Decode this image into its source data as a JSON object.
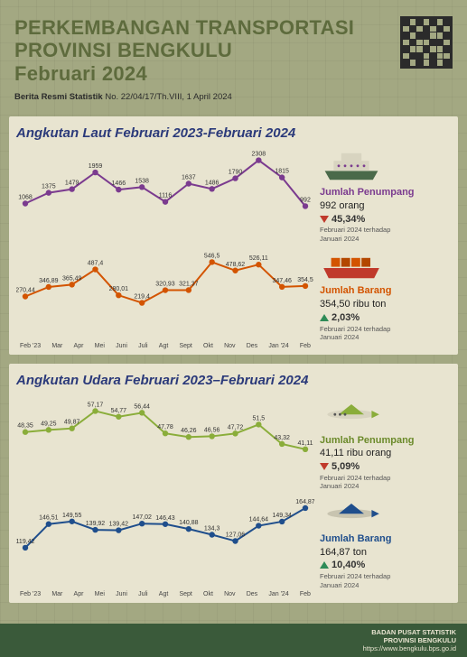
{
  "header": {
    "title_line1": "PERKEMBANGAN TRANSPORTASI",
    "title_line2": "PROVINSI BENGKULU",
    "title_line3": "Februari 2024",
    "subtitle_bold": "Berita Resmi Statistik",
    "subtitle_rest": " No. 22/04/17/Th.VIII, 1 April 2024"
  },
  "months": [
    "Feb '23",
    "Mar",
    "Apr",
    "Mei",
    "Juni",
    "Juli",
    "Agt",
    "Sept",
    "Okt",
    "Nov",
    "Des",
    "Jan '24",
    "Feb"
  ],
  "panel_sea": {
    "title": "Angkutan Laut Februari 2023-Februari 2024",
    "series_passenger": {
      "color": "#7b3b8f",
      "label_color": "#7b3b8f",
      "values": [
        1068,
        1375,
        1479,
        1959,
        1466,
        1538,
        1116,
        1637,
        1486,
        1790,
        2308,
        1815,
        992
      ],
      "ymin": 900,
      "ymax": 2400,
      "metric_title": "Jumlah Penumpang",
      "metric_value": "992 orang",
      "pct": "45,34%",
      "direction": "down",
      "note1": "Februari 2024 terhadap",
      "note2": "Januari 2024"
    },
    "series_goods": {
      "color": "#d35400",
      "label_color": "#d35400",
      "values": [
        270.44,
        346.89,
        365.49,
        487.4,
        280.01,
        219.4,
        320.93,
        321.37,
        546.5,
        478.62,
        526.11,
        347.46,
        354.5
      ],
      "labels": [
        "270,44",
        "346,89",
        "365,49",
        "487,4",
        "280,01",
        "219,4",
        "320,93",
        "321,37",
        "546,5",
        "478,62",
        "526,11",
        "347,46",
        "354,5"
      ],
      "ymin": 180,
      "ymax": 600,
      "metric_title": "Jumlah Barang",
      "metric_value": "354,50 ribu ton",
      "pct": "2,03%",
      "direction": "up",
      "note1": "Februari 2024 terhadap",
      "note2": "Januari 2024"
    }
  },
  "panel_air": {
    "title": "Angkutan Udara Februari 2023–Februari 2024",
    "series_passenger": {
      "color": "#8aad3a",
      "label_color": "#6b8a2a",
      "values": [
        48.35,
        49.25,
        49.87,
        57.17,
        54.77,
        56.44,
        47.78,
        46.26,
        46.56,
        47.72,
        51.5,
        43.32,
        41.11
      ],
      "labels": [
        "48,35",
        "49,25",
        "49,87",
        "57,17",
        "54,77",
        "56,44",
        "47,78",
        "46,26",
        "46,56",
        "47,72",
        "51,5",
        "43,32",
        "41,11"
      ],
      "ymin": 38,
      "ymax": 60,
      "metric_title": "Jumlah Penumpang",
      "metric_value": "41,11 ribu orang",
      "pct": "5,09%",
      "direction": "down",
      "note1": "Februari 2024 terhadap",
      "note2": "Januari 2024"
    },
    "series_goods": {
      "color": "#1f4e8c",
      "label_color": "#1f4e8c",
      "values": [
        119.42,
        146.51,
        149.55,
        139.92,
        139.42,
        147.02,
        146.43,
        140.88,
        134.3,
        127.06,
        144.64,
        149.34,
        164.87
      ],
      "labels": [
        "119,42",
        "146,51",
        "149,55",
        "139,92",
        "139,42",
        "147,02",
        "146,43",
        "140,88",
        "134,3",
        "127,06",
        "144,64",
        "149,34",
        "164,87"
      ],
      "ymin": 110,
      "ymax": 170,
      "metric_title": "Jumlah Barang",
      "metric_value": "164,87 ton",
      "pct": "10,40%",
      "direction": "up",
      "note1": "Februari 2024 terhadap",
      "note2": "Januari 2024"
    }
  },
  "footer": {
    "line1": "BADAN PUSAT STATISTIK",
    "line2": "PROVINSI BENGKULU",
    "line3": "https://www.bengkulu.bps.go.id"
  },
  "style": {
    "bg": "#a3a882",
    "panel_bg": "#e8e4d0",
    "title_color": "#5e6b3d",
    "heading_color": "#2b3a7a",
    "footer_bg": "#3a5a3a",
    "down_color": "#c0392b",
    "up_color": "#2e8b57",
    "marker_radius": 3.2,
    "line_width": 2
  }
}
